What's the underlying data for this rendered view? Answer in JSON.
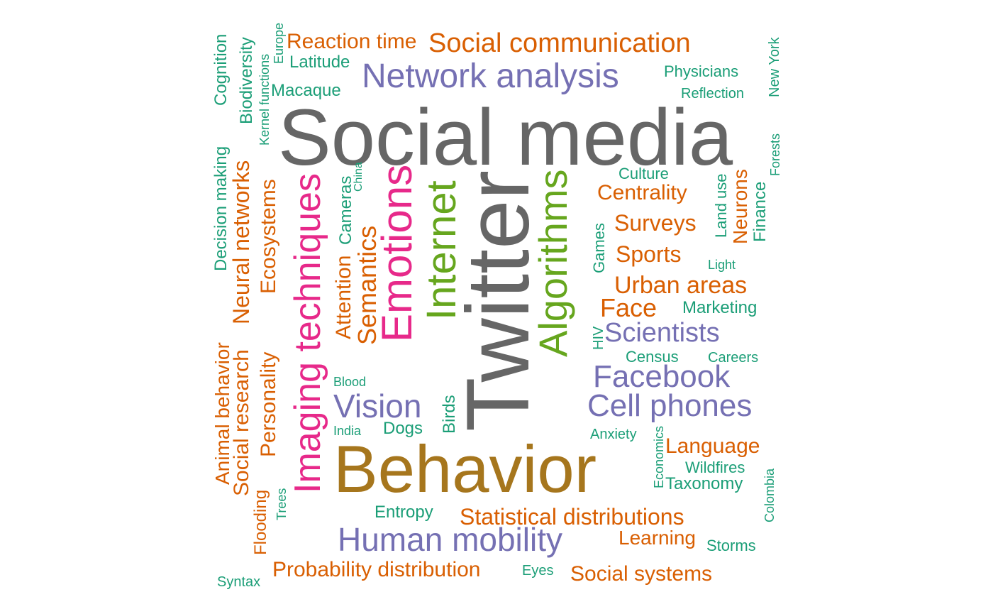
{
  "palette": {
    "gray": "#666666",
    "brown": "#A6761D",
    "pink": "#E7298A",
    "green": "#66A61E",
    "purple": "#7570B3",
    "orange": "#D95F02",
    "teal": "#1B9E77"
  },
  "words": [
    {
      "text": "Social media",
      "color": "gray"
    },
    {
      "text": "Twitter",
      "color": "gray"
    },
    {
      "text": "Behavior",
      "color": "brown"
    },
    {
      "text": "Algorithms",
      "color": "green"
    },
    {
      "text": "Internet",
      "color": "green"
    },
    {
      "text": "Emotions",
      "color": "pink"
    },
    {
      "text": "Imaging techniques",
      "color": "pink"
    },
    {
      "text": "Network analysis",
      "color": "purple"
    },
    {
      "text": "Human mobility",
      "color": "purple"
    },
    {
      "text": "Facebook",
      "color": "purple"
    },
    {
      "text": "Cell phones",
      "color": "purple"
    },
    {
      "text": "Vision",
      "color": "purple"
    },
    {
      "text": "Scientists",
      "color": "purple"
    },
    {
      "text": "Social communication",
      "color": "orange"
    },
    {
      "text": "Reaction time",
      "color": "orange"
    },
    {
      "text": "Semantics",
      "color": "orange"
    },
    {
      "text": "Attention",
      "color": "orange"
    },
    {
      "text": "Centrality",
      "color": "orange"
    },
    {
      "text": "Surveys",
      "color": "orange"
    },
    {
      "text": "Sports",
      "color": "orange"
    },
    {
      "text": "Urban areas",
      "color": "orange"
    },
    {
      "text": "Face",
      "color": "orange"
    },
    {
      "text": "Neurons",
      "color": "orange"
    },
    {
      "text": "Statistical distributions",
      "color": "orange"
    },
    {
      "text": "Probability distribution",
      "color": "orange"
    },
    {
      "text": "Social systems",
      "color": "orange"
    },
    {
      "text": "Learning",
      "color": "orange"
    },
    {
      "text": "Language",
      "color": "orange"
    },
    {
      "text": "Neural networks",
      "color": "orange"
    },
    {
      "text": "Ecosystems",
      "color": "orange"
    },
    {
      "text": "Personality",
      "color": "orange"
    },
    {
      "text": "Social research",
      "color": "orange"
    },
    {
      "text": "Animal behavior",
      "color": "orange"
    },
    {
      "text": "Flooding",
      "color": "orange"
    },
    {
      "text": "Latitude",
      "color": "teal"
    },
    {
      "text": "Macaque",
      "color": "teal"
    },
    {
      "text": "Physicians",
      "color": "teal"
    },
    {
      "text": "Reflection",
      "color": "teal"
    },
    {
      "text": "Culture",
      "color": "teal"
    },
    {
      "text": "Land use",
      "color": "teal"
    },
    {
      "text": "Finance",
      "color": "teal"
    },
    {
      "text": "Forests",
      "color": "teal"
    },
    {
      "text": "New York",
      "color": "teal"
    },
    {
      "text": "Light",
      "color": "teal"
    },
    {
      "text": "Marketing",
      "color": "teal"
    },
    {
      "text": "Games",
      "color": "teal"
    },
    {
      "text": "HIV",
      "color": "teal"
    },
    {
      "text": "Census",
      "color": "teal"
    },
    {
      "text": "Careers",
      "color": "teal"
    },
    {
      "text": "Anxiety",
      "color": "teal"
    },
    {
      "text": "Economics",
      "color": "teal"
    },
    {
      "text": "Wildfires",
      "color": "teal"
    },
    {
      "text": "Taxonomy",
      "color": "teal"
    },
    {
      "text": "Colombia",
      "color": "teal"
    },
    {
      "text": "Storms",
      "color": "teal"
    },
    {
      "text": "Eyes",
      "color": "teal"
    },
    {
      "text": "Entropy",
      "color": "teal"
    },
    {
      "text": "Dogs",
      "color": "teal"
    },
    {
      "text": "India",
      "color": "teal"
    },
    {
      "text": "Birds",
      "color": "teal"
    },
    {
      "text": "Blood",
      "color": "teal"
    },
    {
      "text": "Cameras",
      "color": "teal"
    },
    {
      "text": "China",
      "color": "teal"
    },
    {
      "text": "Europe",
      "color": "teal"
    },
    {
      "text": "Kernel functions",
      "color": "teal"
    },
    {
      "text": "Biodiversity",
      "color": "teal"
    },
    {
      "text": "Cognition",
      "color": "teal"
    },
    {
      "text": "Decision making",
      "color": "teal"
    },
    {
      "text": "Trees",
      "color": "teal"
    },
    {
      "text": "Syntax",
      "color": "teal"
    }
  ]
}
